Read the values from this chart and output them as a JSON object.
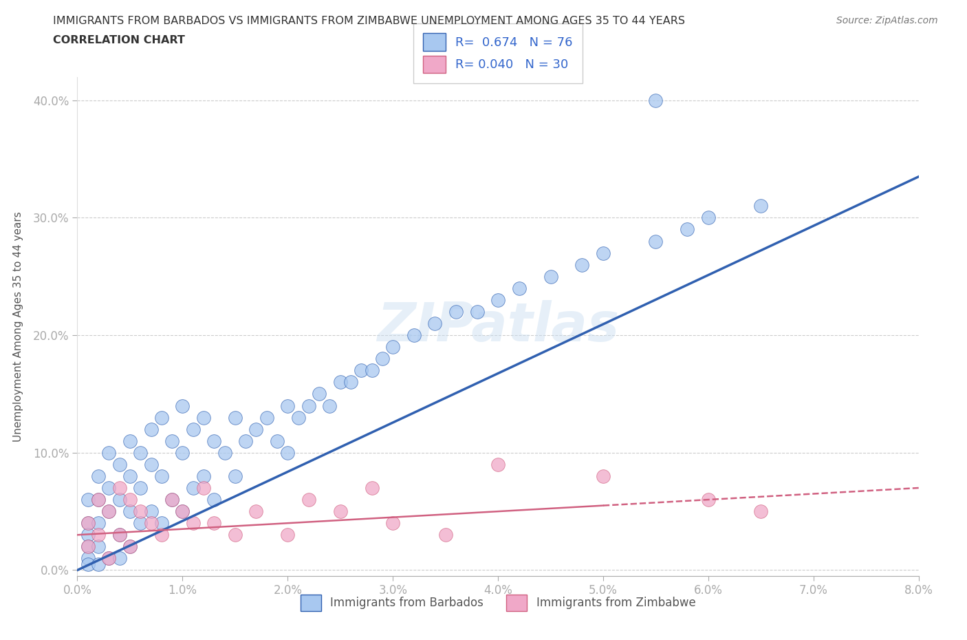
{
  "title_line1": "IMMIGRANTS FROM BARBADOS VS IMMIGRANTS FROM ZIMBABWE UNEMPLOYMENT AMONG AGES 35 TO 44 YEARS",
  "title_line2": "CORRELATION CHART",
  "source": "Source: ZipAtlas.com",
  "ylabel": "Unemployment Among Ages 35 to 44 years",
  "xlim": [
    0.0,
    0.08
  ],
  "ylim": [
    -0.005,
    0.42
  ],
  "xticks": [
    0.0,
    0.01,
    0.02,
    0.03,
    0.04,
    0.05,
    0.06,
    0.07,
    0.08
  ],
  "yticks": [
    0.0,
    0.1,
    0.2,
    0.3,
    0.4
  ],
  "barbados_R": 0.674,
  "barbados_N": 76,
  "zimbabwe_R": 0.04,
  "zimbabwe_N": 30,
  "barbados_color": "#a8c8f0",
  "zimbabwe_color": "#f0a8c8",
  "barbados_line_color": "#3060b0",
  "zimbabwe_line_color": "#d06080",
  "background_color": "#ffffff",
  "watermark": "ZIPatlas",
  "barbados_x": [
    0.001,
    0.001,
    0.001,
    0.001,
    0.001,
    0.001,
    0.002,
    0.002,
    0.002,
    0.002,
    0.002,
    0.003,
    0.003,
    0.003,
    0.003,
    0.004,
    0.004,
    0.004,
    0.004,
    0.005,
    0.005,
    0.005,
    0.005,
    0.006,
    0.006,
    0.006,
    0.007,
    0.007,
    0.007,
    0.008,
    0.008,
    0.008,
    0.009,
    0.009,
    0.01,
    0.01,
    0.01,
    0.011,
    0.011,
    0.012,
    0.012,
    0.013,
    0.013,
    0.014,
    0.015,
    0.015,
    0.016,
    0.017,
    0.018,
    0.019,
    0.02,
    0.02,
    0.021,
    0.022,
    0.023,
    0.024,
    0.025,
    0.026,
    0.027,
    0.028,
    0.029,
    0.03,
    0.032,
    0.034,
    0.036,
    0.038,
    0.04,
    0.042,
    0.045,
    0.048,
    0.05,
    0.055,
    0.058,
    0.06,
    0.065,
    0.055
  ],
  "barbados_y": [
    0.06,
    0.04,
    0.03,
    0.02,
    0.01,
    0.005,
    0.08,
    0.06,
    0.04,
    0.02,
    0.005,
    0.1,
    0.07,
    0.05,
    0.01,
    0.09,
    0.06,
    0.03,
    0.01,
    0.11,
    0.08,
    0.05,
    0.02,
    0.1,
    0.07,
    0.04,
    0.12,
    0.09,
    0.05,
    0.13,
    0.08,
    0.04,
    0.11,
    0.06,
    0.14,
    0.1,
    0.05,
    0.12,
    0.07,
    0.13,
    0.08,
    0.11,
    0.06,
    0.1,
    0.13,
    0.08,
    0.11,
    0.12,
    0.13,
    0.11,
    0.14,
    0.1,
    0.13,
    0.14,
    0.15,
    0.14,
    0.16,
    0.16,
    0.17,
    0.17,
    0.18,
    0.19,
    0.2,
    0.21,
    0.22,
    0.22,
    0.23,
    0.24,
    0.25,
    0.26,
    0.27,
    0.28,
    0.29,
    0.3,
    0.31,
    0.4
  ],
  "zimbabwe_x": [
    0.001,
    0.001,
    0.002,
    0.002,
    0.003,
    0.003,
    0.004,
    0.004,
    0.005,
    0.005,
    0.006,
    0.007,
    0.008,
    0.009,
    0.01,
    0.011,
    0.012,
    0.013,
    0.015,
    0.017,
    0.02,
    0.022,
    0.025,
    0.028,
    0.03,
    0.035,
    0.04,
    0.05,
    0.06,
    0.065
  ],
  "zimbabwe_y": [
    0.04,
    0.02,
    0.06,
    0.03,
    0.05,
    0.01,
    0.07,
    0.03,
    0.06,
    0.02,
    0.05,
    0.04,
    0.03,
    0.06,
    0.05,
    0.04,
    0.07,
    0.04,
    0.03,
    0.05,
    0.03,
    0.06,
    0.05,
    0.07,
    0.04,
    0.03,
    0.09,
    0.08,
    0.06,
    0.05
  ],
  "blue_line_x0": 0.0,
  "blue_line_y0": 0.0,
  "blue_line_x1": 0.08,
  "blue_line_y1": 0.335,
  "pink_line_x0": 0.0,
  "pink_line_y0": 0.03,
  "pink_line_x1": 0.08,
  "pink_line_y1": 0.07
}
